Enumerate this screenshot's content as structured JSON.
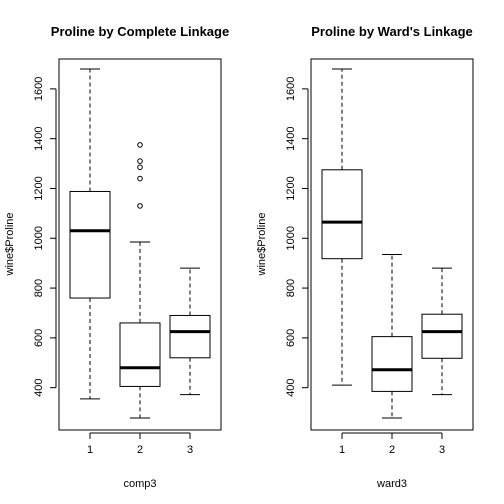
{
  "chart_data": [
    {
      "type": "boxplot",
      "title": "Proline by Complete Linkage",
      "xlabel": "comp3",
      "ylabel": "wine$Proline",
      "ylim": [
        230,
        1720
      ],
      "yticks": [
        400,
        600,
        800,
        1000,
        1200,
        1400,
        1600
      ],
      "categories": [
        "1",
        "2",
        "3"
      ],
      "boxes": [
        {
          "category": "1",
          "lower_whisker": 355,
          "q1": 760,
          "median": 1030,
          "q3": 1188,
          "upper_whisker": 1680,
          "outliers": []
        },
        {
          "category": "2",
          "lower_whisker": 278,
          "q1": 405,
          "median": 480,
          "q3": 660,
          "upper_whisker": 985,
          "outliers": [
            1130,
            1240,
            1285,
            1310,
            1375
          ]
        },
        {
          "category": "3",
          "lower_whisker": 372,
          "q1": 520,
          "median": 625,
          "q3": 690,
          "upper_whisker": 880,
          "outliers": []
        }
      ]
    },
    {
      "type": "boxplot",
      "title": "Proline by Ward's Linkage",
      "xlabel": "ward3",
      "ylabel": "wine$Proline",
      "ylim": [
        230,
        1720
      ],
      "yticks": [
        400,
        600,
        800,
        1000,
        1200,
        1400,
        1600
      ],
      "categories": [
        "1",
        "2",
        "3"
      ],
      "boxes": [
        {
          "category": "1",
          "lower_whisker": 410,
          "q1": 918,
          "median": 1065,
          "q3": 1275,
          "upper_whisker": 1680,
          "outliers": []
        },
        {
          "category": "2",
          "lower_whisker": 278,
          "q1": 385,
          "median": 472,
          "q3": 605,
          "upper_whisker": 935,
          "outliers": []
        },
        {
          "category": "3",
          "lower_whisker": 372,
          "q1": 518,
          "median": 625,
          "q3": 695,
          "upper_whisker": 880,
          "outliers": []
        }
      ]
    }
  ]
}
